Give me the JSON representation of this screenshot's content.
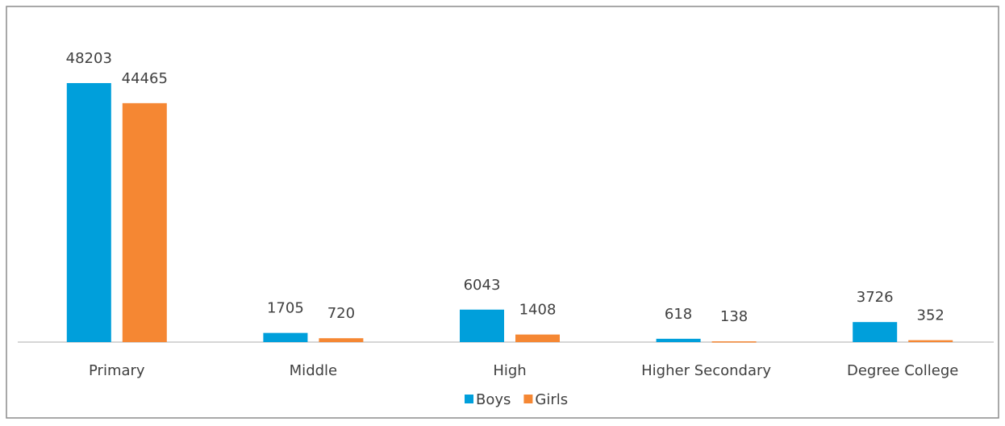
{
  "chart_data": {
    "type": "bar",
    "categories": [
      "Primary",
      "Middle",
      "High",
      "Higher Secondary",
      "Degree College"
    ],
    "series": [
      {
        "name": "Boys",
        "color": "#009fdb",
        "values": [
          48203,
          1705,
          6043,
          618,
          3726
        ]
      },
      {
        "name": "Girls",
        "color": "#f58733",
        "values": [
          44465,
          720,
          1408,
          138,
          352
        ]
      }
    ],
    "ylim": [
      0,
      50000
    ],
    "legend": "bottom"
  }
}
